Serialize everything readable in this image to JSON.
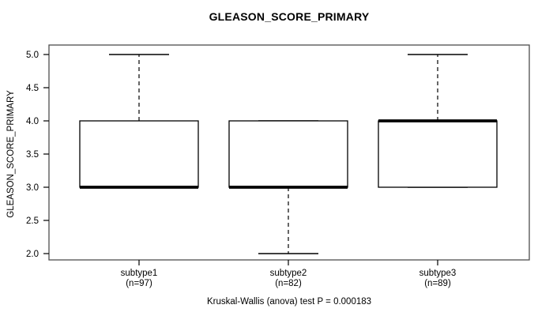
{
  "title": "GLEASON_SCORE_PRIMARY",
  "ylabel": "GLEASON_SCORE_PRIMARY",
  "caption": "Kruskal-Wallis (anova) test P = 0.000183",
  "colors": {
    "line": "#000000",
    "plot_border": "#4d4d4d",
    "background": "#ffffff"
  },
  "chart_data": {
    "type": "boxplot",
    "title": "GLEASON_SCORE_PRIMARY",
    "xlabel": "",
    "ylabel": "GLEASON_SCORE_PRIMARY",
    "ylim": [
      1.9,
      5.1
    ],
    "yticks": [
      2.0,
      2.5,
      3.0,
      3.5,
      4.0,
      4.5,
      5.0
    ],
    "grid": false,
    "whisker_style": "dashed",
    "groups": [
      {
        "label": "subtype1",
        "sublabel": "(n=97)",
        "n": 97,
        "q1": 3,
        "median": 3,
        "q3": 4,
        "whisker_low": 3,
        "whisker_high": 5
      },
      {
        "label": "subtype2",
        "sublabel": "(n=82)",
        "n": 82,
        "q1": 3,
        "median": 3,
        "q3": 4,
        "whisker_low": 2,
        "whisker_high": 4
      },
      {
        "label": "subtype3",
        "sublabel": "(n=89)",
        "n": 89,
        "q1": 3,
        "median": 4,
        "q3": 4,
        "whisker_low": 3,
        "whisker_high": 5
      }
    ],
    "stat_test": "Kruskal-Wallis (anova) test P = 0.000183"
  }
}
